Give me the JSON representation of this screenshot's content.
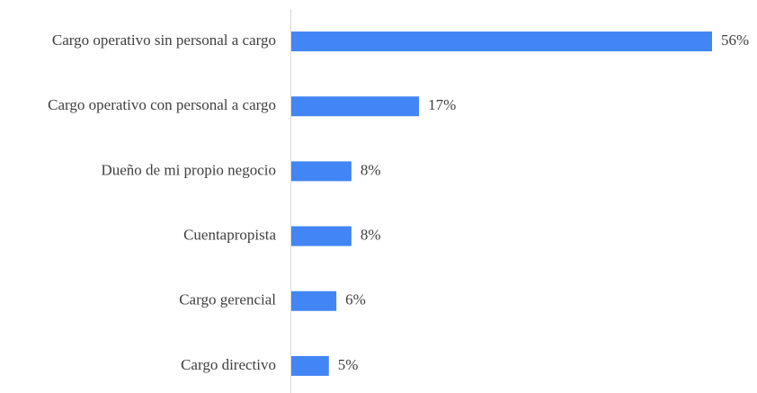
{
  "chart_data": {
    "type": "bar",
    "orientation": "horizontal",
    "categories": [
      "Cargo operativo sin personal a cargo",
      "Cargo operativo con personal a cargo",
      "Dueño de mi propio negocio",
      "Cuentapropista",
      "Cargo gerencial",
      "Cargo directivo"
    ],
    "values": [
      56,
      17,
      8,
      8,
      6,
      5
    ],
    "value_labels": [
      "56%",
      "17%",
      "8%",
      "8%",
      "6%",
      "5%"
    ],
    "color": "#4285f4"
  }
}
